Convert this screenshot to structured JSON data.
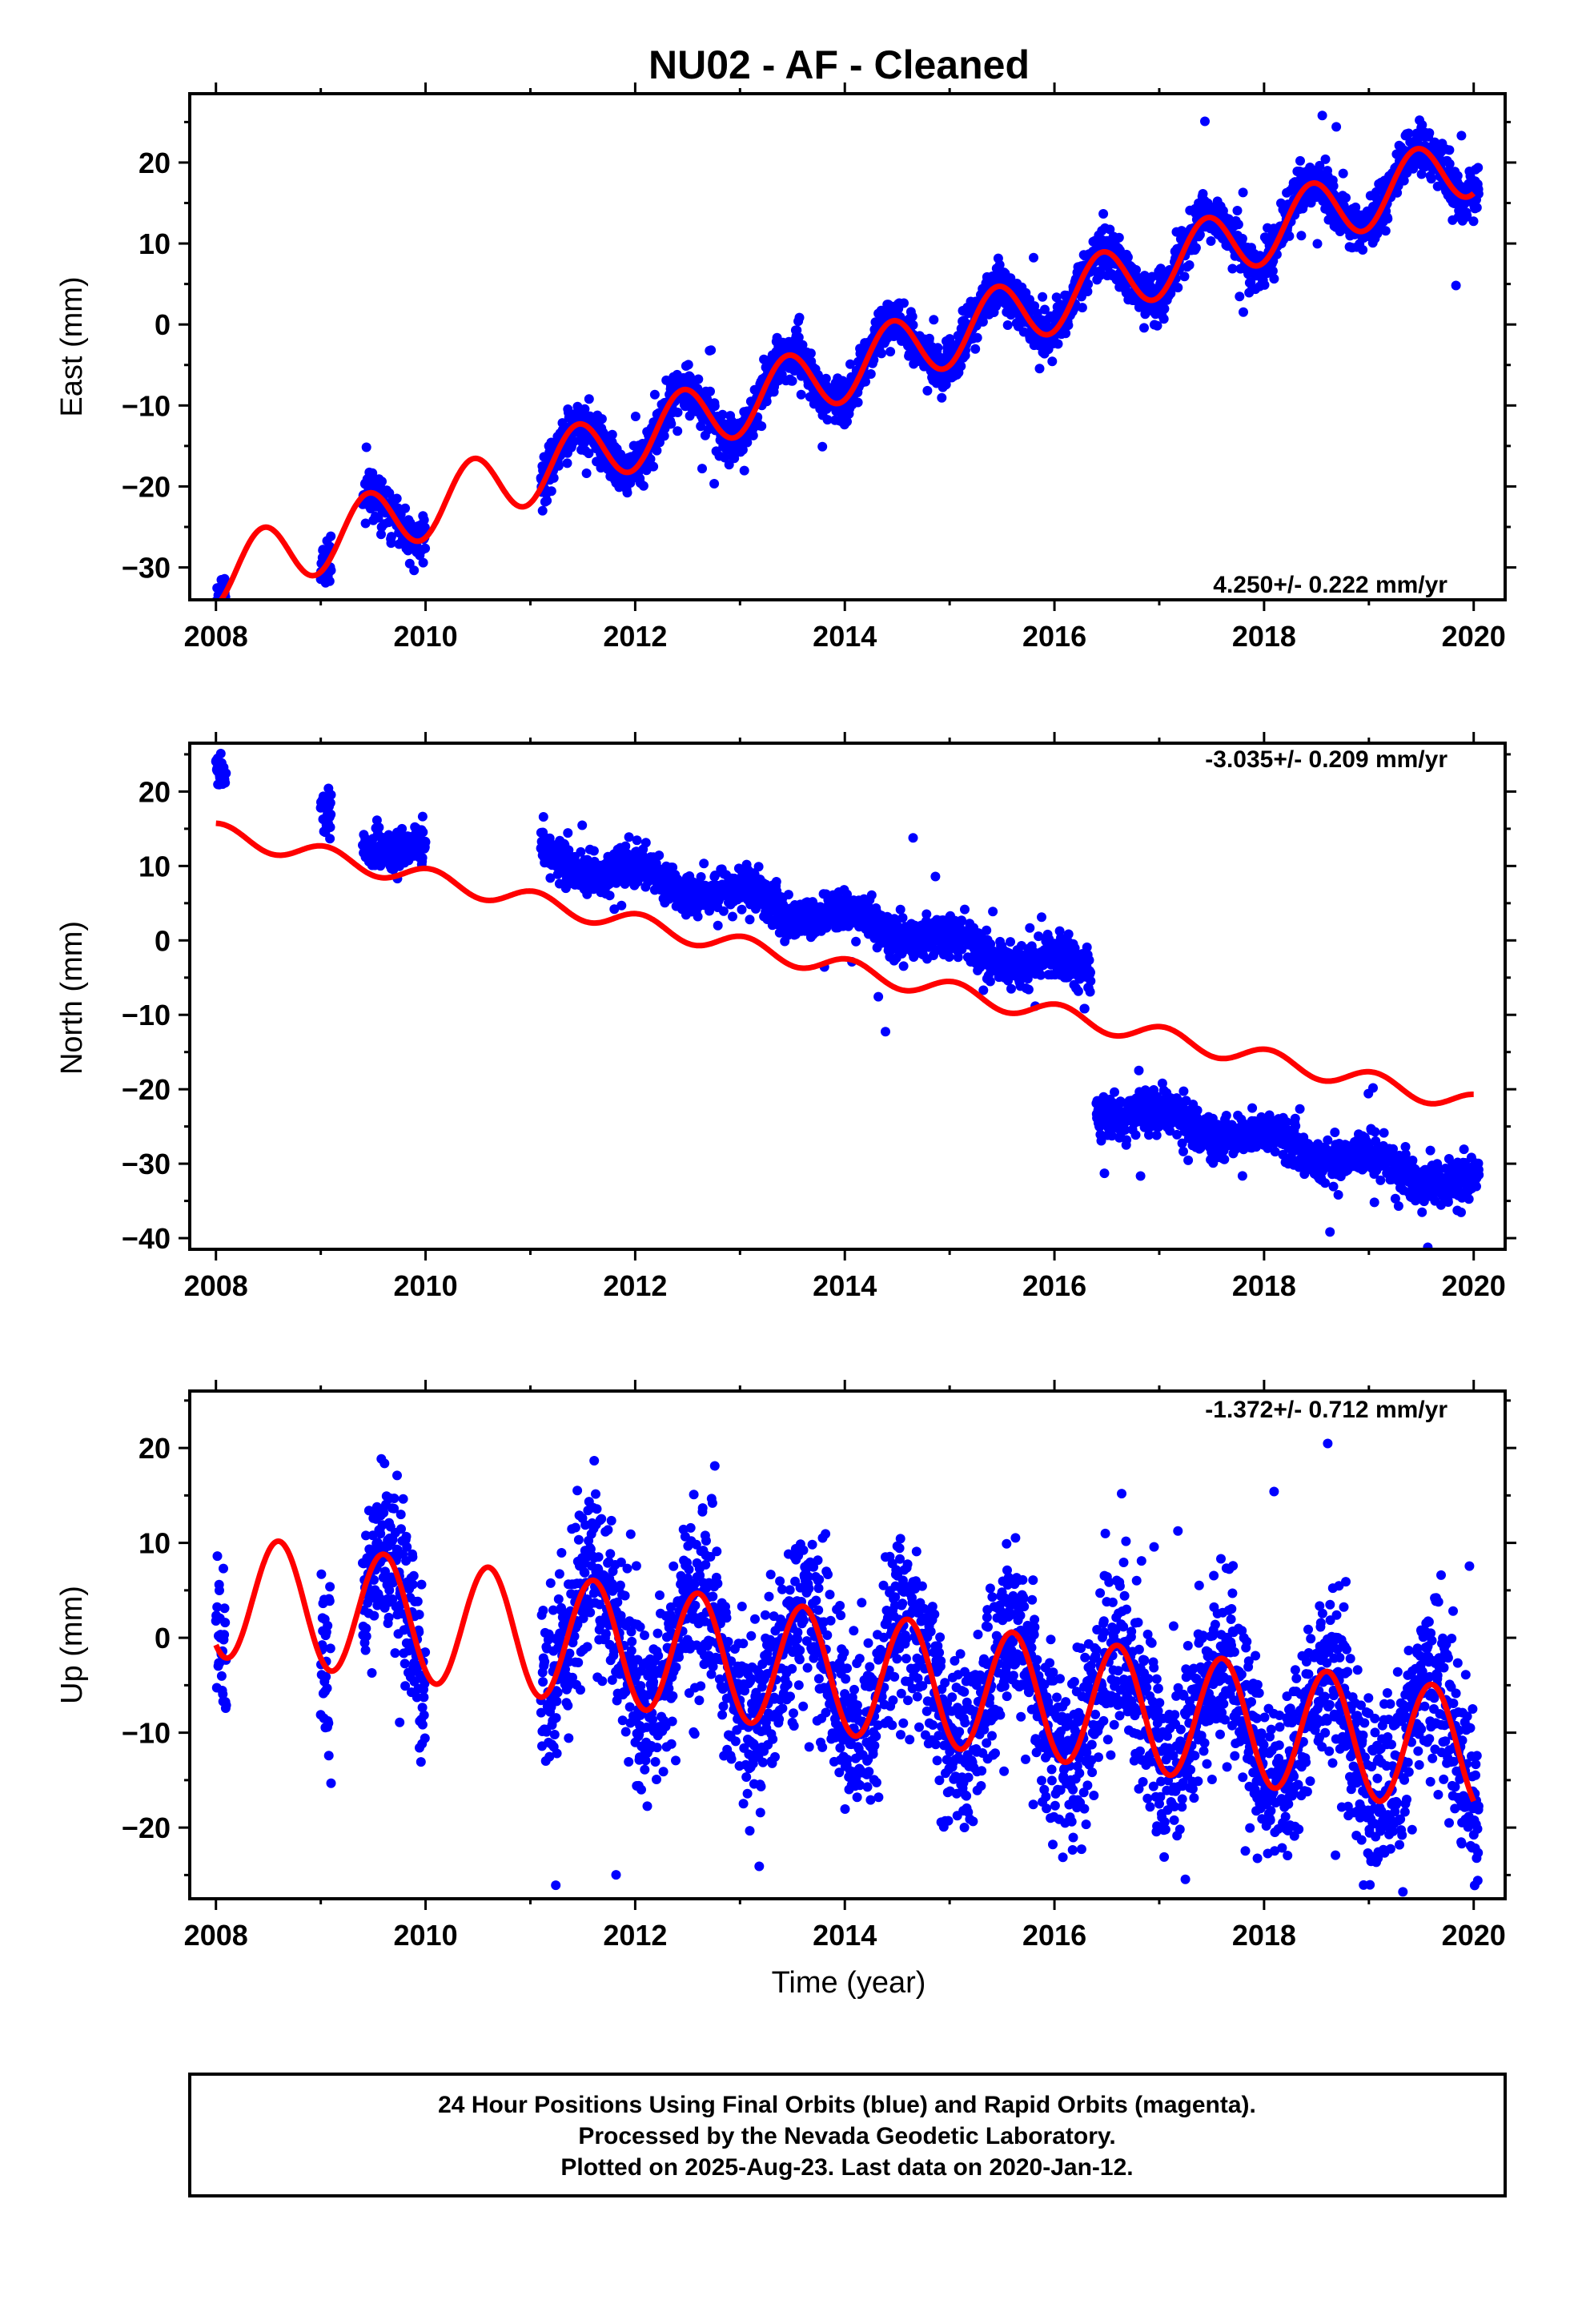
{
  "title": "NU02  - AF - Cleaned",
  "xlabel": "Time (year)",
  "footer": {
    "line1": "24 Hour Positions Using Final Orbits (blue) and Rapid Orbits (magenta).",
    "line2": "Processed by the Nevada Geodetic Laboratory.",
    "line3": "Plotted on 2025-Aug-23. Last data on 2020-Jan-12."
  },
  "colors": {
    "observations": "#0000ff",
    "model": "#ff0000"
  },
  "chart_data": [
    {
      "type": "scatter",
      "ylabel": "East (mm)",
      "rate_label": "4.250+/- 0.222 mm/yr",
      "xlim": [
        2007.75,
        2020.3
      ],
      "ylim": [
        -34,
        28.5
      ],
      "xticks": [
        2008,
        2010,
        2012,
        2014,
        2016,
        2018,
        2020
      ],
      "yticks": [
        -30,
        -20,
        -10,
        0,
        10,
        20
      ],
      "model": {
        "trend_per_year": 4.25,
        "value_2008": -31,
        "annual_amplitude": 4.0,
        "annual_peak": 0.45,
        "line_end": 2020.0
      },
      "series": [
        {
          "segments": [
            [
              2008.0,
              2008.1
            ],
            [
              2009.0,
              2009.1
            ],
            [
              2009.4,
              2010.0
            ],
            [
              2011.1,
              2020.05
            ]
          ],
          "offsets": [],
          "scatter": 1.4,
          "outlier_rate": 0.03,
          "outlier_spread": 5
        }
      ]
    },
    {
      "type": "scatter",
      "ylabel": "North (mm)",
      "rate_label": "-3.035+/- 0.209 mm/yr",
      "xlim": [
        2007.75,
        2020.3
      ],
      "ylim": [
        -41.5,
        26.5
      ],
      "xticks": [
        2008,
        2010,
        2012,
        2014,
        2016,
        2018,
        2020
      ],
      "yticks": [
        -40,
        -30,
        -20,
        -10,
        0,
        10,
        20
      ],
      "model": {
        "trend_per_year": -3.035,
        "value_2008": 14.5,
        "annual_amplitude": 1.3,
        "annual_peak": 0.05,
        "line_end": 2020.0
      },
      "series": [
        {
          "segments": [
            [
              2008.0,
              2008.1
            ],
            [
              2009.0,
              2009.1
            ],
            [
              2009.4,
              2010.0
            ],
            [
              2011.1,
              2016.35
            ],
            [
              2016.4,
              2020.05
            ]
          ],
          "offsets": [
            [
              2008.0,
              2008.1,
              7
            ],
            [
              2009.0,
              2009.1,
              5
            ],
            [
              2009.4,
              2010.0,
              3.5
            ],
            [
              2011.1,
              2016.35,
              6.5
            ],
            [
              2016.4,
              2020.05,
              -11
            ]
          ],
          "scatter": 1.3,
          "outlier_rate": 0.03,
          "outlier_spread": 5
        }
      ]
    },
    {
      "type": "scatter",
      "ylabel": "Up (mm)",
      "rate_label": "-1.372+/- 0.712 mm/yr",
      "xlim": [
        2007.75,
        2020.3
      ],
      "ylim": [
        -27.5,
        26
      ],
      "xticks": [
        2008,
        2010,
        2012,
        2014,
        2016,
        2018,
        2020
      ],
      "yticks": [
        -20,
        -10,
        0,
        10,
        20
      ],
      "model": {
        "trend_per_year": -1.372,
        "value_2008": 4.5,
        "annual_amplitude": 6.5,
        "annual_peak": 0.6,
        "line_end": 2020.0
      },
      "series": [
        {
          "segments": [
            [
              2008.0,
              2008.1
            ],
            [
              2009.0,
              2009.1
            ],
            [
              2009.4,
              2010.0
            ],
            [
              2011.1,
              2020.05
            ]
          ],
          "offsets": [],
          "scatter": 4.5,
          "outlier_rate": 0.04,
          "outlier_spread": 9
        }
      ]
    }
  ]
}
